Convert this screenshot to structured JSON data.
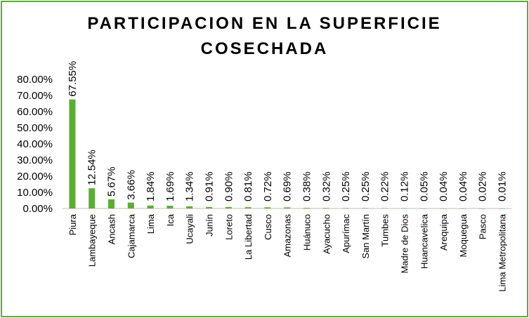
{
  "chart_data": {
    "type": "bar",
    "title_line1": "PARTICIPACION EN LA SUPERFICIE",
    "title_line2": "COSECHADA",
    "categories": [
      "Piura",
      "Lambayeque",
      "Ancash",
      "Cajamarca",
      "Lima",
      "Ica",
      "Ucayali",
      "Junín",
      "Loreto",
      "La Libertad",
      "Cusco",
      "Amazonas",
      "Huánuco",
      "Ayacucho",
      "Apurímac",
      "San Martín",
      "Tumbes",
      "Madre de Dios",
      "Huancavelica",
      "Arequipa",
      "Moquegua",
      "Pasco",
      "Lima Metropolitana"
    ],
    "values": [
      67.55,
      12.54,
      5.67,
      3.66,
      1.84,
      1.69,
      1.34,
      0.91,
      0.9,
      0.81,
      0.72,
      0.69,
      0.38,
      0.32,
      0.25,
      0.25,
      0.22,
      0.12,
      0.05,
      0.04,
      0.04,
      0.02,
      0.01
    ],
    "data_labels": [
      "67.55%",
      "12.54%",
      "5.67%",
      "3.66%",
      "1.84%",
      "1.69%",
      "1.34%",
      "0.91%",
      "0.90%",
      "0.81%",
      "0.72%",
      "0.69%",
      "0.38%",
      "0.32%",
      "0.25%",
      "0.25%",
      "0.22%",
      "0.12%",
      "0.05%",
      "0.04%",
      "0.04%",
      "0.02%",
      "0.01%"
    ],
    "ylim": [
      0,
      80
    ],
    "yticks": [
      "0.00%",
      "10.00%",
      "20.00%",
      "30.00%",
      "40.00%",
      "50.00%",
      "60.00%",
      "70.00%",
      "80.00%"
    ],
    "grid": false,
    "legend": "none",
    "bar_color": "#5aae32",
    "border_color": "#5aae32"
  }
}
